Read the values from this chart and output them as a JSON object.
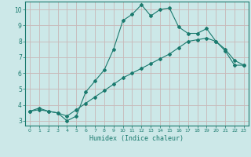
{
  "xlabel": "Humidex (Indice chaleur)",
  "line1_x": [
    0,
    1,
    2,
    3,
    4,
    5,
    6,
    7,
    8,
    9,
    10,
    11,
    12,
    13,
    14,
    15,
    16,
    17,
    18,
    19,
    20,
    21,
    22,
    23
  ],
  "line1_y": [
    3.6,
    3.8,
    3.6,
    3.5,
    3.0,
    3.3,
    4.8,
    5.5,
    6.2,
    7.5,
    9.3,
    9.7,
    10.3,
    9.6,
    10.0,
    10.1,
    8.9,
    8.5,
    8.5,
    8.8,
    8.0,
    7.4,
    6.5,
    6.5
  ],
  "line2_x": [
    0,
    1,
    2,
    3,
    4,
    5,
    6,
    7,
    8,
    9,
    10,
    11,
    12,
    13,
    14,
    15,
    16,
    17,
    18,
    19,
    20,
    21,
    22,
    23
  ],
  "line2_y": [
    3.6,
    3.7,
    3.6,
    3.5,
    3.3,
    3.7,
    4.1,
    4.5,
    4.9,
    5.3,
    5.7,
    6.0,
    6.3,
    6.6,
    6.9,
    7.2,
    7.6,
    8.0,
    8.1,
    8.2,
    8.0,
    7.5,
    6.8,
    6.5
  ],
  "line_color": "#1a7a6e",
  "bg_color": "#cce8e8",
  "grid_color": "#c8b8b8",
  "ylim": [
    2.7,
    10.5
  ],
  "xlim": [
    -0.5,
    23.5
  ],
  "yticks": [
    3,
    4,
    5,
    6,
    7,
    8,
    9,
    10
  ],
  "xticks": [
    0,
    1,
    2,
    3,
    4,
    5,
    6,
    7,
    8,
    9,
    10,
    11,
    12,
    13,
    14,
    15,
    16,
    17,
    18,
    19,
    20,
    21,
    22,
    23
  ]
}
